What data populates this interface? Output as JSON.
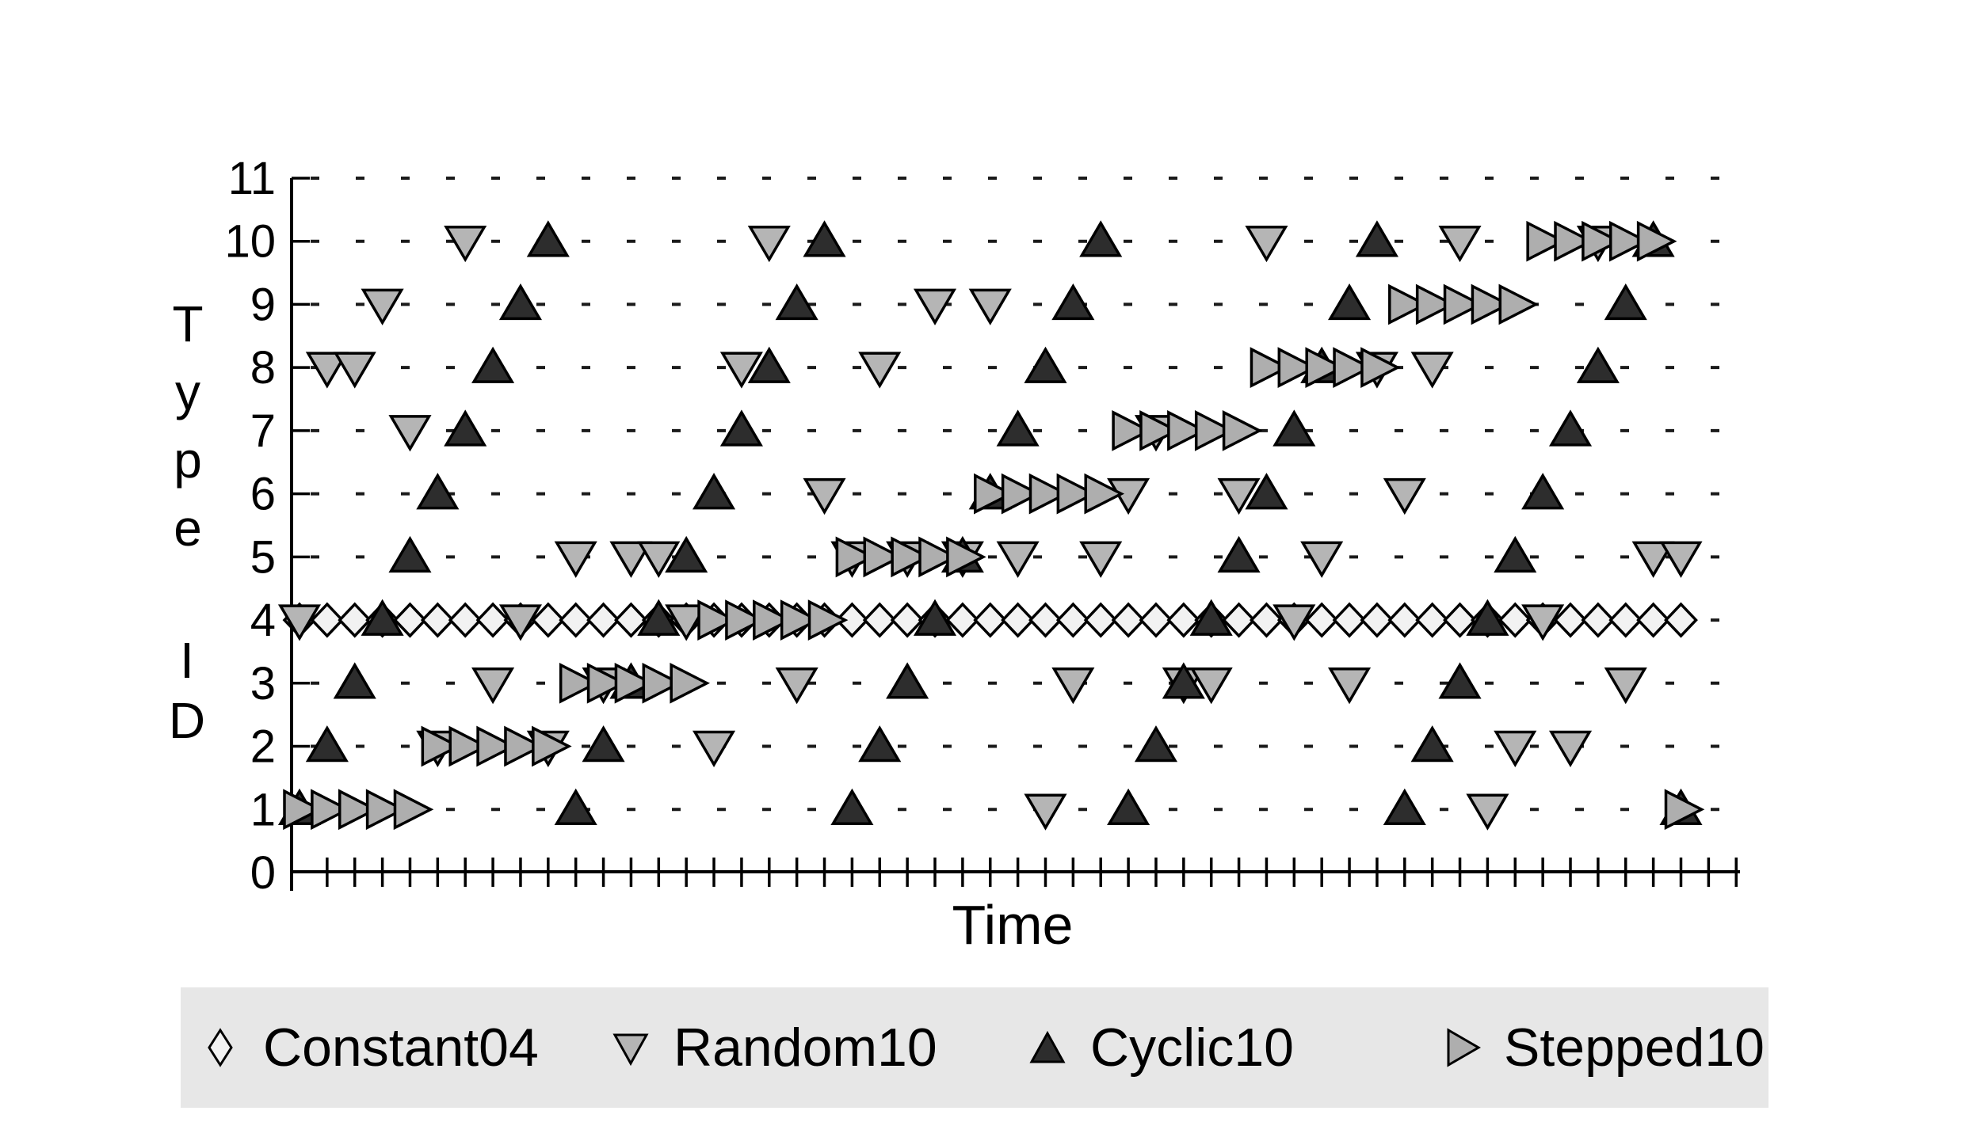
{
  "chart_data": {
    "type": "scatter",
    "title": "",
    "xlabel": "Time",
    "ylabel": "Type ID",
    "ylabel_stacked": {
      "word1": [
        "T",
        "y",
        "p",
        "e"
      ],
      "word2": [
        "I",
        "D"
      ]
    },
    "xlim": [
      0,
      52
    ],
    "ylim": [
      0,
      11
    ],
    "x_axis": {
      "tick_count": 52,
      "tick_labels_shown": false
    },
    "y_axis": {
      "tick_values": [
        0,
        1,
        2,
        3,
        4,
        5,
        6,
        7,
        8,
        9,
        10,
        11
      ],
      "tick_labels": [
        "0",
        "1",
        "2",
        "3",
        "4",
        "5",
        "6",
        "7",
        "8",
        "9",
        "10",
        "11"
      ]
    },
    "grid": {
      "horizontal_dotted_rows": [
        1,
        2,
        3,
        4,
        5,
        6,
        7,
        8,
        9,
        10,
        11
      ]
    },
    "x_start": 0,
    "x_step": 1,
    "x": [
      0,
      1,
      2,
      3,
      4,
      5,
      6,
      7,
      8,
      9,
      10,
      11,
      12,
      13,
      14,
      15,
      16,
      17,
      18,
      19,
      20,
      21,
      22,
      23,
      24,
      25,
      26,
      27,
      28,
      29,
      30,
      31,
      32,
      33,
      34,
      35,
      36,
      37,
      38,
      39,
      40,
      41,
      42,
      43,
      44,
      45,
      46,
      47,
      48,
      49,
      50
    ],
    "series": [
      {
        "name": "Constant04",
        "marker": "diamond",
        "fill": "#f2f2f2",
        "stroke": "#000000",
        "values": [
          4,
          4,
          4,
          4,
          4,
          4,
          4,
          4,
          4,
          4,
          4,
          4,
          4,
          4,
          4,
          4,
          4,
          4,
          4,
          4,
          4,
          4,
          4,
          4,
          4,
          4,
          4,
          4,
          4,
          4,
          4,
          4,
          4,
          4,
          4,
          4,
          4,
          4,
          4,
          4,
          4,
          4,
          4,
          4,
          4,
          4,
          4,
          4,
          4,
          4,
          4
        ]
      },
      {
        "name": "Random10",
        "marker": "triangle-down",
        "fill": "#b5b5b5",
        "stroke": "#000000",
        "values": [
          4,
          8,
          8,
          9,
          7,
          2,
          10,
          3,
          4,
          2,
          5,
          3,
          5,
          5,
          4,
          2,
          8,
          10,
          3,
          6,
          5,
          8,
          5,
          9,
          5,
          9,
          5,
          1,
          3,
          5,
          6,
          7,
          3,
          3,
          6,
          10,
          4,
          5,
          3,
          8,
          6,
          8,
          10,
          1,
          2,
          4,
          2,
          10,
          3,
          5,
          5
        ]
      },
      {
        "name": "Cyclic10",
        "marker": "triangle-up",
        "fill": "#2d2d2d",
        "stroke": "#000000",
        "values": [
          1,
          2,
          3,
          4,
          5,
          6,
          7,
          8,
          9,
          10,
          1,
          2,
          3,
          4,
          5,
          6,
          7,
          8,
          9,
          10,
          1,
          2,
          3,
          4,
          5,
          6,
          7,
          8,
          9,
          10,
          1,
          2,
          3,
          4,
          5,
          6,
          7,
          8,
          9,
          10,
          1,
          2,
          3,
          4,
          5,
          6,
          7,
          8,
          9,
          10,
          1
        ]
      },
      {
        "name": "Stepped10",
        "marker": "triangle-right",
        "fill": "#aeaeae",
        "stroke": "#000000",
        "values": [
          1,
          1,
          1,
          1,
          1,
          2,
          2,
          2,
          2,
          2,
          3,
          3,
          3,
          3,
          3,
          4,
          4,
          4,
          4,
          4,
          5,
          5,
          5,
          5,
          5,
          6,
          6,
          6,
          6,
          6,
          7,
          7,
          7,
          7,
          7,
          8,
          8,
          8,
          8,
          8,
          9,
          9,
          9,
          9,
          9,
          10,
          10,
          10,
          10,
          10,
          1
        ]
      }
    ],
    "legend": {
      "position": "bottom",
      "background": "#e7e7e7",
      "entries": [
        {
          "label": "Constant04",
          "marker": "diamond",
          "fill": "#f2f2f2"
        },
        {
          "label": "Random10",
          "marker": "triangle-down",
          "fill": "#b5b5b5"
        },
        {
          "label": "Cyclic10",
          "marker": "triangle-up",
          "fill": "#2d2d2d"
        },
        {
          "label": "Stepped10",
          "marker": "triangle-right",
          "fill": "#aeaeae"
        }
      ]
    }
  }
}
